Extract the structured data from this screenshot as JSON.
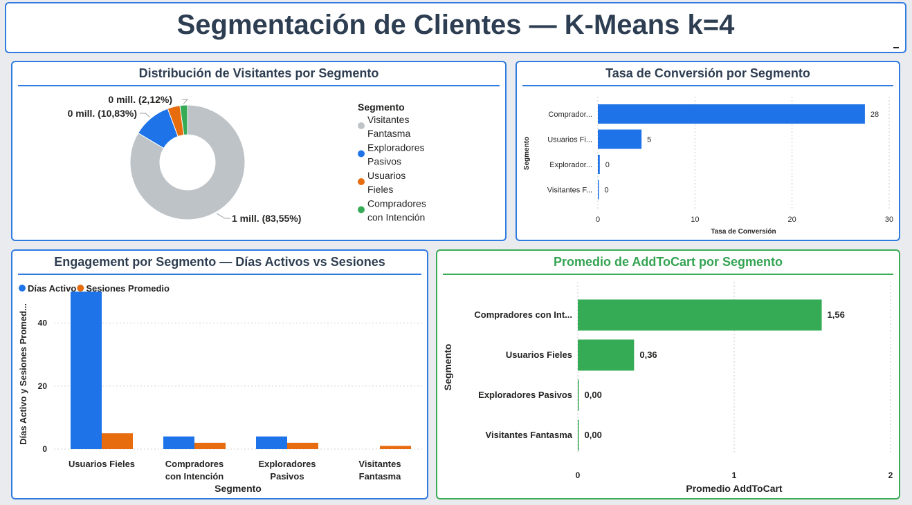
{
  "header": {
    "title": "Segmentación de Clientes — K-Means k=4"
  },
  "colors": {
    "blue": "#1e73e8",
    "orange": "#e66c0e",
    "gray": "#bec3c8",
    "green": "#35ab55",
    "title_text": "#2e3e52"
  },
  "chart_data": [
    {
      "id": "donut",
      "type": "pie",
      "title": "Distribución de Visitantes por Segmento",
      "legend_title": "Segmento",
      "legend_position": "right",
      "slices": [
        {
          "name_lines": [
            "Visitantes",
            "Fantasma"
          ],
          "percent": 83.55,
          "label": "1 mill. (83,55%)",
          "color": "#bec3c8"
        },
        {
          "name_lines": [
            "Exploradores",
            "Pasivos"
          ],
          "percent": 10.83,
          "label": "0 mill. (10,83%)",
          "color": "#1e73e8"
        },
        {
          "name_lines": [
            "Usuarios",
            "Fieles"
          ],
          "percent": 3.5,
          "label": "",
          "color": "#e66c0e"
        },
        {
          "name_lines": [
            "Compradores",
            "con Intención"
          ],
          "percent": 2.12,
          "label": "0 mill. (2,12%)",
          "color": "#35ab55"
        }
      ]
    },
    {
      "id": "conversion",
      "type": "bar",
      "orientation": "horizontal",
      "title": "Tasa de Conversión por Segmento",
      "xlabel": "Tasa de Conversión",
      "ylabel": "Segmento",
      "xlim": [
        0,
        30
      ],
      "xticks": [
        0,
        10,
        20,
        30
      ],
      "grid": true,
      "categories": [
        "Comprador...",
        "Usuarios Fi...",
        "Explorador...",
        "Visitantes F..."
      ],
      "values": [
        27.5,
        4.5,
        0.2,
        0.1
      ],
      "labels": [
        "28",
        "5",
        "0",
        "0"
      ],
      "color": "#1e73e8"
    },
    {
      "id": "engagement",
      "type": "bar",
      "title": "Engagement por Segmento — Días Activos vs Sesiones",
      "xlabel": "Segmento",
      "ylabel": "Días Activo y Sesiones Promed...",
      "ylim": [
        0,
        52
      ],
      "yticks": [
        0,
        20,
        40
      ],
      "grid": true,
      "legend_position": "top-left",
      "categories": [
        [
          "Usuarios Fieles"
        ],
        [
          "Compradores",
          "con Intención"
        ],
        [
          "Exploradores",
          "Pasivos"
        ],
        [
          "Visitantes",
          "Fantasma"
        ]
      ],
      "series": [
        {
          "name": "Días Activo",
          "color": "#1e73e8",
          "values": [
            50,
            4,
            4,
            0
          ]
        },
        {
          "name": "Sesiones Promedio",
          "color": "#e66c0e",
          "values": [
            5,
            2,
            2,
            1
          ]
        }
      ]
    },
    {
      "id": "addtocart",
      "type": "bar",
      "orientation": "horizontal",
      "title": "Promedio de AddToCart por Segmento",
      "xlabel": "Promedio AddToCart",
      "ylabel": "Segmento",
      "xlim": [
        0,
        2
      ],
      "xticks": [
        0,
        1,
        2
      ],
      "grid": true,
      "categories": [
        "Compradores con Int...",
        "Usuarios Fieles",
        "Exploradores Pasivos",
        "Visitantes Fantasma"
      ],
      "values": [
        1.56,
        0.36,
        0.0,
        0.0
      ],
      "labels": [
        "1,56",
        "0,36",
        "0,00",
        "0,00"
      ],
      "color": "#35ab55"
    }
  ]
}
